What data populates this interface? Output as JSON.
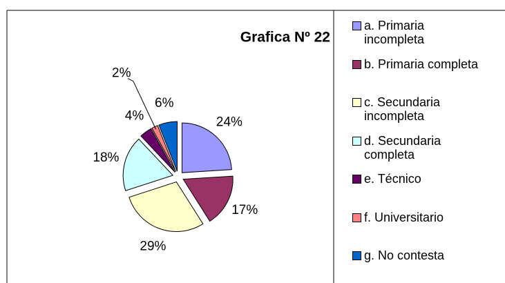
{
  "chart_data": {
    "type": "pie",
    "title": "Grafica Nº 22",
    "categories": [
      "a. Primaria incompleta",
      "b. Primaria completa",
      "c. Secundaria incompleta",
      "d. Secundaria completa",
      "e. Técnico",
      "f. Universitario",
      "g. No contesta"
    ],
    "values": [
      24,
      17,
      29,
      18,
      4,
      2,
      6
    ],
    "value_labels": [
      "24%",
      "17%",
      "29%",
      "18%",
      "4%",
      "2%",
      "6%"
    ],
    "colors": [
      "#9999ff",
      "#993366",
      "#ffffcc",
      "#ccffff",
      "#660066",
      "#ff8080",
      "#0066cc"
    ],
    "legend": "right"
  }
}
